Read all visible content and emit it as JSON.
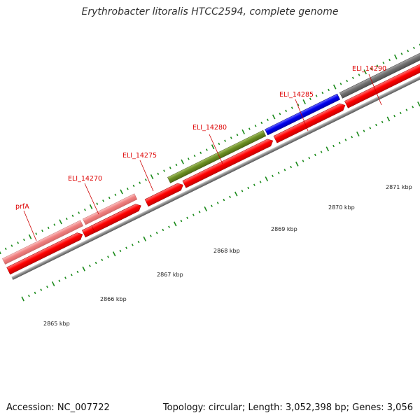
{
  "title": "Erythrobacter litoralis HTCC2594, complete genome",
  "footer": {
    "accession": "Accession: NC_007722",
    "summary": "Topology: circular; Length: 3,052,398 bp; Genes: 3,056"
  },
  "colors": {
    "cds_red": "#ff0000",
    "gene_pink": "#f08080",
    "gene_olive": "#6b8e23",
    "gene_blue": "#0000ee",
    "gene_gray": "#707070",
    "backbone": "#888888",
    "tick_green": "#1a8a1a",
    "label_red": "#dd0000"
  },
  "scale_labels": [
    {
      "text": "2865 kbp",
      "kbp": 2865
    },
    {
      "text": "2866 kbp",
      "kbp": 2866
    },
    {
      "text": "2867 kbp",
      "kbp": 2867
    },
    {
      "text": "2868 kbp",
      "kbp": 2868
    },
    {
      "text": "2869 kbp",
      "kbp": 2869
    },
    {
      "text": "2870 kbp",
      "kbp": 2870
    },
    {
      "text": "2871 kbp",
      "kbp": 2871
    }
  ],
  "genes": [
    {
      "name": "prfA",
      "color": "pink"
    },
    {
      "name": "ELI_14270",
      "color": "pink"
    },
    {
      "name": "ELI_14275",
      "color": "none"
    },
    {
      "name": "ELI_14280",
      "color": "olive"
    },
    {
      "name": "ELI_14285",
      "color": "blue"
    },
    {
      "name": "ELI_14290",
      "color": "gray"
    }
  ]
}
